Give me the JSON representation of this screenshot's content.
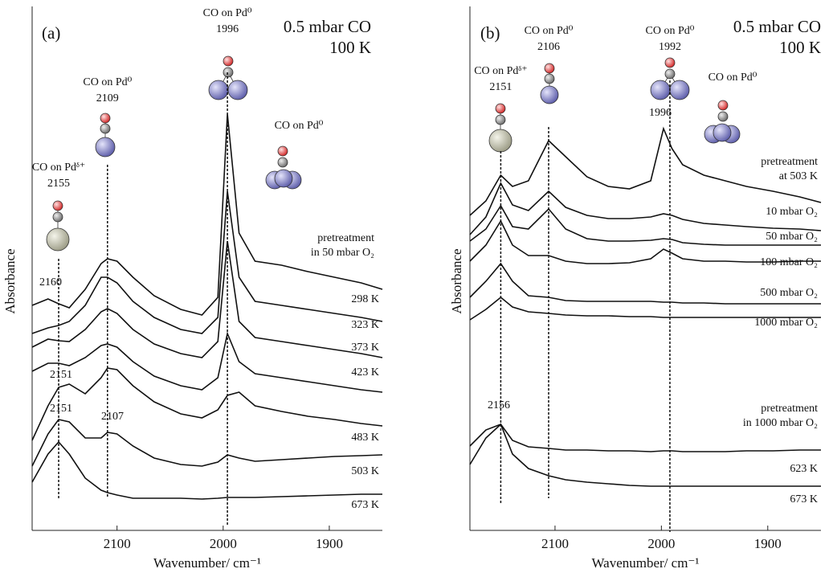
{
  "chart_data": [
    {
      "type": "line",
      "panel": "(a)",
      "conditions": [
        "0.5 mbar CO",
        "100 K"
      ],
      "x_label": "Wavenumber/ cm⁻¹",
      "y_label": "Absorbance",
      "xlim": [
        2180,
        1850
      ],
      "xticks": [
        2100,
        2000,
        1900
      ],
      "ylim": [
        0,
        652
      ],
      "x": [
        2180,
        2165,
        2155,
        2145,
        2130,
        2115,
        2109,
        2100,
        2085,
        2065,
        2040,
        2020,
        2005,
        1996,
        1985,
        1970,
        1945,
        1920,
        1895,
        1870,
        1850
      ],
      "series": [
        {
          "name": "298 K",
          "color": "#111111",
          "values": [
            280,
            288,
            282,
            277,
            300,
            332,
            338,
            335,
            315,
            292,
            275,
            268,
            290,
            518,
            370,
            335,
            330,
            322,
            315,
            308,
            300
          ]
        },
        {
          "name": "323 K",
          "color": "#111111",
          "values": [
            245,
            252,
            255,
            260,
            280,
            315,
            315,
            308,
            285,
            265,
            250,
            245,
            265,
            422,
            315,
            285,
            280,
            275,
            270,
            265,
            260
          ]
        },
        {
          "name": "373 K",
          "color": "#111111",
          "values": [
            228,
            238,
            236,
            235,
            250,
            272,
            276,
            270,
            250,
            232,
            220,
            215,
            235,
            360,
            260,
            240,
            235,
            230,
            225,
            220,
            215
          ]
        },
        {
          "name": "423 K",
          "color": "#111111",
          "values": [
            198,
            208,
            208,
            205,
            215,
            230,
            232,
            228,
            210,
            192,
            180,
            175,
            190,
            245,
            210,
            195,
            190,
            185,
            180,
            175,
            172
          ]
        },
        {
          "name": "483 K",
          "color": "#111111",
          "values": [
            112,
            155,
            178,
            182,
            170,
            190,
            202,
            200,
            180,
            160,
            145,
            140,
            150,
            168,
            172,
            155,
            148,
            142,
            138,
            133,
            130
          ]
        },
        {
          "name": "503 K",
          "color": "#111111",
          "values": [
            80,
            120,
            138,
            135,
            115,
            115,
            122,
            120,
            105,
            90,
            82,
            80,
            85,
            94,
            90,
            86,
            88,
            90,
            92,
            93,
            94
          ]
        },
        {
          "name": "673 K",
          "color": "#111111",
          "values": [
            60,
            95,
            110,
            95,
            65,
            50,
            47,
            44,
            40,
            40,
            40,
            39,
            40,
            41,
            41,
            41,
            42,
            43,
            44,
            45,
            45
          ]
        }
      ],
      "peaks": [
        {
          "label": "CO on Pdᵟ⁺",
          "value": 2155
        },
        {
          "label": "CO on Pd⁰",
          "value": 2109
        },
        {
          "label": "CO on Pd⁰",
          "value": 1996
        }
      ],
      "site_labels": [
        "CO on Pd⁰"
      ],
      "peak_labels": [
        2160,
        2151,
        2151,
        2107
      ],
      "notes": [
        [
          "pretreatment",
          "in 50 mbar O₂"
        ]
      ]
    },
    {
      "type": "line",
      "panel": "(b)",
      "conditions": [
        "0.5 mbar CO",
        "100 K"
      ],
      "x_label": "Wavenumber/ cm⁻¹",
      "y_label": "Absorbance",
      "xlim": [
        2180,
        1850
      ],
      "xticks": [
        2100,
        2000,
        1900
      ],
      "ylim": [
        0,
        652
      ],
      "x": [
        2180,
        2165,
        2151,
        2140,
        2125,
        2106,
        2090,
        2070,
        2050,
        2030,
        2010,
        1998,
        1990,
        1980,
        1960,
        1940,
        1920,
        1895,
        1870,
        1850
      ],
      "series": [
        {
          "color": "#111111",
          "values": [
            392,
            410,
            442,
            428,
            435,
            485,
            465,
            440,
            428,
            425,
            435,
            500,
            475,
            455,
            442,
            435,
            428,
            422,
            415,
            408
          ]
        },
        {
          "name": "10 mbar O₂",
          "color": "#111111",
          "values": [
            368,
            390,
            432,
            405,
            398,
            422,
            402,
            392,
            388,
            388,
            390,
            394,
            392,
            387,
            382,
            380,
            378,
            376,
            375,
            373
          ]
        },
        {
          "name": "50 mbar O₂",
          "color": "#111111",
          "values": [
            360,
            375,
            404,
            378,
            375,
            400,
            375,
            363,
            360,
            360,
            361,
            363,
            362,
            358,
            356,
            355,
            355,
            355,
            355,
            355
          ]
        },
        {
          "name": "100 mbar O₂",
          "color": "#111111",
          "values": [
            335,
            355,
            385,
            355,
            342,
            342,
            335,
            332,
            332,
            333,
            338,
            350,
            345,
            338,
            335,
            335,
            334,
            334,
            335,
            335
          ]
        },
        {
          "name": "500 mbar O₂",
          "color": "#111111",
          "values": [
            290,
            310,
            332,
            310,
            292,
            290,
            286,
            285,
            285,
            285,
            285,
            284,
            284,
            283,
            283,
            282,
            282,
            282,
            282,
            282
          ]
        },
        {
          "name": "1000 mbar O₂",
          "color": "#111111",
          "values": [
            262,
            275,
            290,
            278,
            272,
            270,
            268,
            267,
            267,
            266,
            266,
            265,
            265,
            265,
            265,
            265,
            265,
            265,
            265,
            265
          ]
        },
        {
          "name": "623 K",
          "color": "#111111",
          "values": [
            105,
            125,
            132,
            112,
            104,
            102,
            100,
            100,
            99,
            99,
            98,
            99,
            99,
            98,
            98,
            98,
            99,
            99,
            100,
            100
          ]
        },
        {
          "name": "673 K",
          "color": "#111111",
          "values": [
            82,
            115,
            132,
            95,
            77,
            68,
            63,
            60,
            58,
            56,
            55,
            55,
            55,
            55,
            55,
            55,
            55,
            55,
            55,
            55
          ]
        }
      ],
      "peaks": [
        {
          "label": "CO on Pdᵟ⁺",
          "value": 2151
        },
        {
          "label": "CO on Pd⁰",
          "value": 2106
        },
        {
          "label": "CO on Pd⁰",
          "value": 1992
        }
      ],
      "site_labels": [
        "CO on Pd⁰"
      ],
      "peak_labels": [
        1996,
        2156
      ],
      "notes": [
        [
          "pretreatment",
          "at 503 K"
        ],
        [
          "pretreatment",
          "in 1000 mbar O₂"
        ]
      ]
    }
  ]
}
